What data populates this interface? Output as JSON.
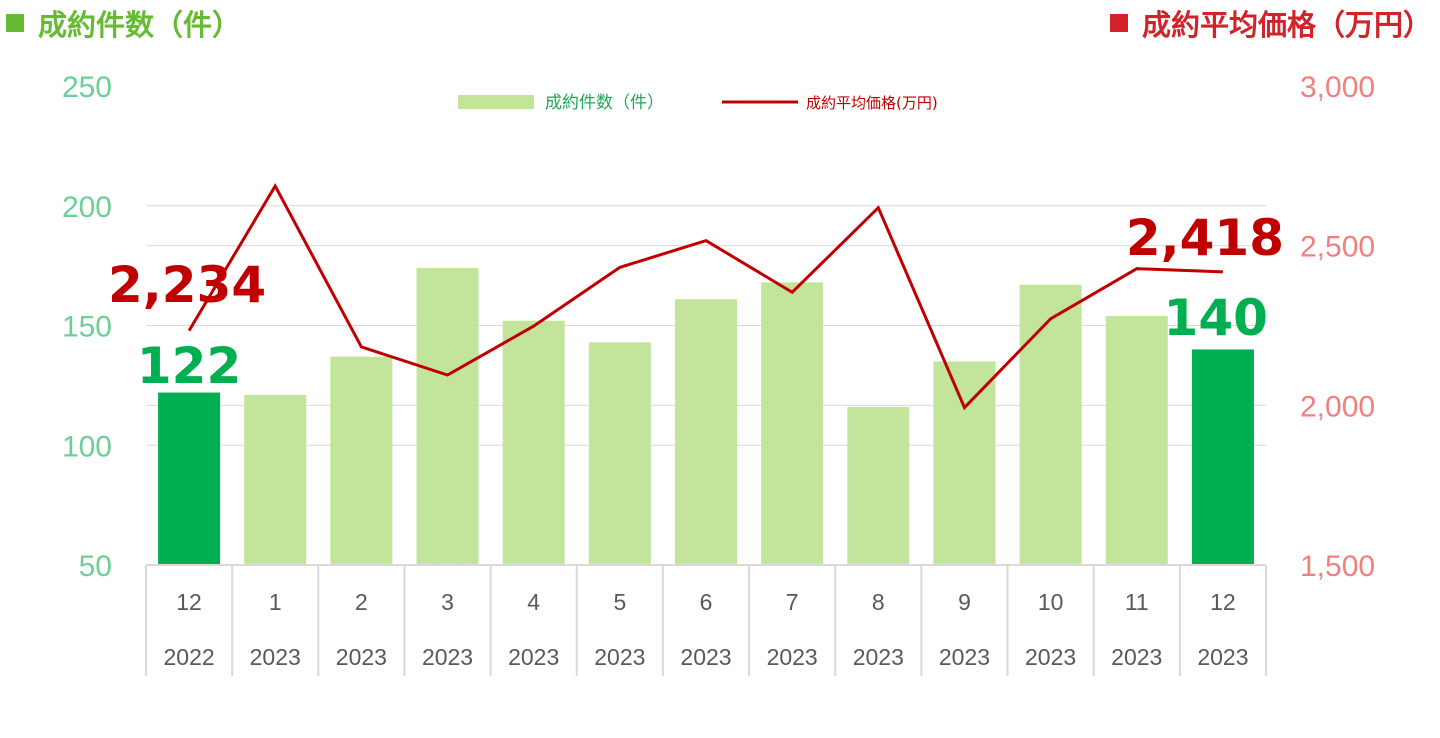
{
  "titles": {
    "left": "成約件数（件）",
    "right": "成約平均価格（万円）"
  },
  "colors": {
    "bar": "#c3e49b",
    "bar_highlight": "#00b050",
    "line": "#c00000",
    "label_count": "#00b050",
    "label_price": "#c00000",
    "grid": "#d9d9d9"
  },
  "chart_data": {
    "type": "bar",
    "categories": [
      [
        "12",
        "2022"
      ],
      [
        "1",
        "2023"
      ],
      [
        "2",
        "2023"
      ],
      [
        "3",
        "2023"
      ],
      [
        "4",
        "2023"
      ],
      [
        "5",
        "2023"
      ],
      [
        "6",
        "2023"
      ],
      [
        "7",
        "2023"
      ],
      [
        "8",
        "2023"
      ],
      [
        "9",
        "2023"
      ],
      [
        "10",
        "2023"
      ],
      [
        "11",
        "2023"
      ],
      [
        "12",
        "2023"
      ]
    ],
    "series": [
      {
        "name": "成約件数（件）",
        "type": "bar",
        "axis": "left",
        "values": [
          122,
          121,
          137,
          174,
          152,
          143,
          161,
          168,
          116,
          135,
          167,
          154,
          140
        ],
        "highlight": [
          0,
          12
        ]
      },
      {
        "name": "成約平均価格(万円)",
        "type": "line",
        "axis": "right",
        "values": [
          2234,
          2687,
          2183,
          2095,
          2248,
          2432,
          2516,
          2354,
          2619,
          1993,
          2271,
          2428,
          2418
        ]
      }
    ],
    "left_axis": {
      "ylim": [
        50,
        250
      ],
      "ticks": [
        "50",
        "100",
        "150",
        "200",
        "250"
      ]
    },
    "right_axis": {
      "ylim": [
        1500,
        3000
      ],
      "ticks": [
        "1,500",
        "2,000",
        "2,500",
        "3,000"
      ]
    },
    "data_labels": [
      {
        "series": 0,
        "index": 0,
        "text": "122"
      },
      {
        "series": 0,
        "index": 12,
        "text": "140"
      },
      {
        "series": 1,
        "index": 0,
        "text": "2,234"
      },
      {
        "series": 1,
        "index": 12,
        "text": "2,418"
      }
    ],
    "grid": true,
    "legend": "top-center"
  }
}
